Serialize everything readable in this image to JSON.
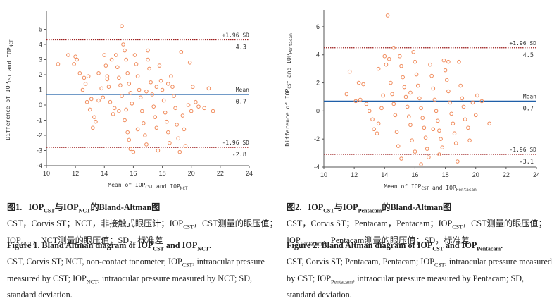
{
  "colors": {
    "mean_line": "#1f5fa8",
    "limit_line": "#9c1c1c",
    "points": "#f08a5a",
    "axis": "#555555"
  },
  "chart_data": [
    {
      "type": "scatter",
      "title": "",
      "xlabel": "Mean of IOP_CST and IOP_NCT",
      "ylabel": "Difference of IOP_CST and IOP_NCT",
      "xlim": [
        10,
        24
      ],
      "ylim": [
        -4,
        6
      ],
      "xticks": [
        10,
        12,
        14,
        16,
        18,
        20,
        22,
        24
      ],
      "yticks": [
        -4,
        -3,
        -2,
        -1,
        0,
        1,
        2,
        3,
        4,
        5
      ],
      "grid": false,
      "reference_lines": [
        {
          "label": "+1.96 SD",
          "value_label": "4.3",
          "y": 4.3,
          "style": "dotted"
        },
        {
          "label": "Mean",
          "value_label": "0.7",
          "y": 0.7,
          "style": "solid"
        },
        {
          "label": "-1.96 SD",
          "value_label": "-2.8",
          "y": -2.8,
          "style": "dotted"
        }
      ],
      "points": [
        [
          10.8,
          2.7
        ],
        [
          11.5,
          3.3
        ],
        [
          11.9,
          2.7
        ],
        [
          12.1,
          3.0
        ],
        [
          12.0,
          3.2
        ],
        [
          12.3,
          2.1
        ],
        [
          12.6,
          1.8
        ],
        [
          12.7,
          1.4
        ],
        [
          12.5,
          1.0
        ],
        [
          12.9,
          1.9
        ],
        [
          13.1,
          0.4
        ],
        [
          12.8,
          0.2
        ],
        [
          13.0,
          -0.3
        ],
        [
          13.3,
          -0.8
        ],
        [
          13.4,
          -1.1
        ],
        [
          13.2,
          -1.5
        ],
        [
          13.6,
          0.3
        ],
        [
          13.8,
          1.1
        ],
        [
          13.9,
          0.5
        ],
        [
          14.1,
          2.6
        ],
        [
          14.0,
          3.3
        ],
        [
          14.2,
          1.7
        ],
        [
          14.3,
          1.2
        ],
        [
          14.4,
          0.2
        ],
        [
          14.6,
          -0.6
        ],
        [
          14.7,
          -0.2
        ],
        [
          14.5,
          3.0
        ],
        [
          14.8,
          3.3
        ],
        [
          14.9,
          2.5
        ],
        [
          15.0,
          1.8
        ],
        [
          15.1,
          1.3
        ],
        [
          15.2,
          0.6
        ],
        [
          15.2,
          5.2
        ],
        [
          15.3,
          4.0
        ],
        [
          15.4,
          3.6
        ],
        [
          15.5,
          3.0
        ],
        [
          15.6,
          2.1
        ],
        [
          15.7,
          1.4
        ],
        [
          15.8,
          0.8
        ],
        [
          15.9,
          0.1
        ],
        [
          15.5,
          -0.3
        ],
        [
          15.4,
          -1.0
        ],
        [
          15.6,
          -1.8
        ],
        [
          15.7,
          -2.3
        ],
        [
          15.8,
          -2.9
        ],
        [
          16.0,
          -3.1
        ],
        [
          16.1,
          3.3
        ],
        [
          16.2,
          2.7
        ],
        [
          16.3,
          1.9
        ],
        [
          16.4,
          1.0
        ],
        [
          16.5,
          0.5
        ],
        [
          16.6,
          -0.4
        ],
        [
          16.7,
          -1.2
        ],
        [
          16.8,
          -2.0
        ],
        [
          16.9,
          -2.6
        ],
        [
          17.0,
          3.0
        ],
        [
          17.1,
          2.4
        ],
        [
          17.2,
          1.5
        ],
        [
          17.3,
          0.7
        ],
        [
          17.4,
          -0.1
        ],
        [
          17.5,
          -0.8
        ],
        [
          17.6,
          -1.5
        ],
        [
          17.7,
          -3.0
        ],
        [
          17.0,
          3.6
        ],
        [
          17.8,
          2.6
        ],
        [
          17.9,
          1.6
        ],
        [
          18.0,
          1.0
        ],
        [
          18.1,
          0.3
        ],
        [
          18.2,
          -0.5
        ],
        [
          18.3,
          -1.1
        ],
        [
          18.4,
          -1.8
        ],
        [
          18.5,
          -2.5
        ],
        [
          18.6,
          1.9
        ],
        [
          18.7,
          1.2
        ],
        [
          18.8,
          0.6
        ],
        [
          18.9,
          -0.2
        ],
        [
          19.0,
          -1.3
        ],
        [
          19.1,
          -2.2
        ],
        [
          19.2,
          -3.1
        ],
        [
          19.3,
          3.5
        ],
        [
          19.4,
          -0.7
        ],
        [
          19.5,
          -1.6
        ],
        [
          19.6,
          -2.7
        ],
        [
          19.8,
          0.0
        ],
        [
          20.0,
          -0.4
        ],
        [
          20.1,
          1.2
        ],
        [
          20.3,
          0.2
        ],
        [
          20.5,
          -0.1
        ],
        [
          21.2,
          1.1
        ],
        [
          21.5,
          -0.4
        ],
        [
          20.9,
          -0.2
        ],
        [
          19.9,
          2.8
        ],
        [
          18.4,
          1.4
        ],
        [
          16.9,
          0.9
        ],
        [
          15.0,
          -0.4
        ],
        [
          14.2,
          1.9
        ],
        [
          13.6,
          2.1
        ],
        [
          17.6,
          1.2
        ],
        [
          16.3,
          -1.6
        ]
      ]
    },
    {
      "type": "scatter",
      "title": "",
      "xlabel": "Mean of IOP_CST and IOP_Pentacam",
      "ylabel": "Difference of IOP_CST and IOP_Pentacam",
      "xlim": [
        10,
        24
      ],
      "ylim": [
        -4,
        7
      ],
      "xticks": [
        10,
        12,
        14,
        16,
        18,
        20,
        22,
        24
      ],
      "yticks": [
        -4,
        -2,
        0,
        2,
        4,
        6
      ],
      "grid": false,
      "reference_lines": [
        {
          "label": "+1.96 SD",
          "value_label": "4.5",
          "y": 4.5,
          "style": "dotted"
        },
        {
          "label": "Mean",
          "value_label": "0.7",
          "y": 0.7,
          "style": "solid"
        },
        {
          "label": "-1.96 SD",
          "value_label": "-3.1",
          "y": -3.1,
          "style": "dotted"
        }
      ],
      "points": [
        [
          11.5,
          1.2
        ],
        [
          11.7,
          2.8
        ],
        [
          12.1,
          0.7
        ],
        [
          12.3,
          2.0
        ],
        [
          12.6,
          1.9
        ],
        [
          12.4,
          0.8
        ],
        [
          12.8,
          0.5
        ],
        [
          13.0,
          0.0
        ],
        [
          13.2,
          -0.6
        ],
        [
          13.3,
          -1.3
        ],
        [
          13.5,
          -1.6
        ],
        [
          13.6,
          -0.9
        ],
        [
          13.8,
          0.2
        ],
        [
          13.9,
          1.1
        ],
        [
          14.0,
          3.9
        ],
        [
          14.1,
          3.3
        ],
        [
          14.3,
          3.7
        ],
        [
          14.4,
          2.0
        ],
        [
          14.5,
          1.2
        ],
        [
          14.6,
          0.5
        ],
        [
          14.7,
          -0.3
        ],
        [
          14.8,
          -1.5
        ],
        [
          14.9,
          -2.5
        ],
        [
          15.0,
          3.9
        ],
        [
          15.1,
          3.2
        ],
        [
          15.2,
          2.4
        ],
        [
          15.3,
          1.7
        ],
        [
          15.4,
          1.0
        ],
        [
          15.5,
          0.3
        ],
        [
          15.6,
          -0.4
        ],
        [
          15.7,
          -1.0
        ],
        [
          15.8,
          -2.1
        ],
        [
          14.2,
          6.8
        ],
        [
          15.9,
          4.2
        ],
        [
          16.0,
          3.5
        ],
        [
          16.1,
          2.6
        ],
        [
          16.2,
          1.8
        ],
        [
          16.3,
          0.9
        ],
        [
          16.4,
          0.2
        ],
        [
          16.5,
          -0.5
        ],
        [
          16.6,
          -1.2
        ],
        [
          16.7,
          -1.9
        ],
        [
          16.8,
          -2.7
        ],
        [
          16.9,
          -3.3
        ],
        [
          17.0,
          3.3
        ],
        [
          17.1,
          2.5
        ],
        [
          17.2,
          1.6
        ],
        [
          17.3,
          0.8
        ],
        [
          17.4,
          0.0
        ],
        [
          17.5,
          -0.7
        ],
        [
          17.6,
          -1.4
        ],
        [
          17.7,
          -2.0
        ],
        [
          17.8,
          -2.6
        ],
        [
          17.9,
          3.6
        ],
        [
          18.0,
          2.9
        ],
        [
          18.1,
          2.2
        ],
        [
          18.2,
          1.4
        ],
        [
          18.3,
          0.6
        ],
        [
          18.4,
          -0.2
        ],
        [
          18.5,
          -0.9
        ],
        [
          18.6,
          -1.6
        ],
        [
          18.7,
          -2.3
        ],
        [
          18.8,
          -3.6
        ],
        [
          18.9,
          3.5
        ],
        [
          19.0,
          1.8
        ],
        [
          19.1,
          0.9
        ],
        [
          19.2,
          0.3
        ],
        [
          19.3,
          -0.6
        ],
        [
          19.5,
          -1.2
        ],
        [
          19.6,
          -2.1
        ],
        [
          19.8,
          0.6
        ],
        [
          20.0,
          -0.3
        ],
        [
          20.1,
          1.1
        ],
        [
          20.4,
          0.7
        ],
        [
          20.9,
          -0.9
        ],
        [
          16.4,
          -3.8
        ],
        [
          17.6,
          -3.1
        ],
        [
          16.0,
          -2.9
        ],
        [
          15.1,
          -3.4
        ],
        [
          14.6,
          4.5
        ],
        [
          15.7,
          1.3
        ],
        [
          13.6,
          3.0
        ],
        [
          18.2,
          3.5
        ],
        [
          17.2,
          -1.3
        ]
      ]
    }
  ],
  "captions": {
    "fig1": {
      "cn_title_prefix": "图1.",
      "cn_title_a": "IOP",
      "cn_title_a_sub": "CST",
      "cn_title_mid": "与IOP",
      "cn_title_b_sub": "NCT",
      "cn_title_suffix": "的Bland-Altman图",
      "cn_line2_a": "CST，Corvis ST；NCT，非接触式眼压计；IOP",
      "cn_line2_sub": "CST",
      "cn_line2_b": "，CST测量的眼压值；",
      "cn_line3_a": "IOP",
      "cn_line3_sub": "NCT",
      "cn_line3_b": "，NCT测量的眼压值；SD，标准差",
      "en_title_a": "Figure 1.   Bland Altman diagram of IOP",
      "en_title_sub1": "CST",
      "en_title_b": " and IOP",
      "en_title_sub2": "NCT",
      "en_title_c": ".",
      "en_body_a": "CST, Corvis ST; NCT, non-contact tonometer; IOP",
      "en_body_sub1": "CST",
      "en_body_b": ", intraocular pressure measured by CST; IOP",
      "en_body_sub2": "NCT",
      "en_body_c": ", intraocular pressure measured by NCT; SD, standard deviation."
    },
    "fig2": {
      "cn_title_prefix": "图2.",
      "cn_title_a": "IOP",
      "cn_title_a_sub": "CST",
      "cn_title_mid": "与IOP",
      "cn_title_b_sub": "Pentacam",
      "cn_title_suffix": "的Bland-Altman图",
      "cn_line2_a": "CST，Corvis ST；Pentacam，Pentacam；IOP",
      "cn_line2_sub": "CST",
      "cn_line2_b": "，CST测量的眼压值；",
      "cn_line3_a": "IOP",
      "cn_line3_sub": "Pentacam",
      "cn_line3_b": "，Pentacam测量的眼压值；SD，标准差",
      "en_title_a": "Figure 2.   Bland Altman diagram of IOP",
      "en_title_sub1": "CST",
      "en_title_b": " and IOP",
      "en_title_sub2": "Pentacam",
      "en_title_c": ".",
      "en_body_a": "CST, Corvis ST; Pentacam, Pentacam; IOP",
      "en_body_sub1": "CST",
      "en_body_b": ", intraocular pressure measured by CST; IOP",
      "en_body_sub2": "Pentacam",
      "en_body_c": ", intraocular pressure measured by Pentacam; SD, standard deviation."
    }
  }
}
